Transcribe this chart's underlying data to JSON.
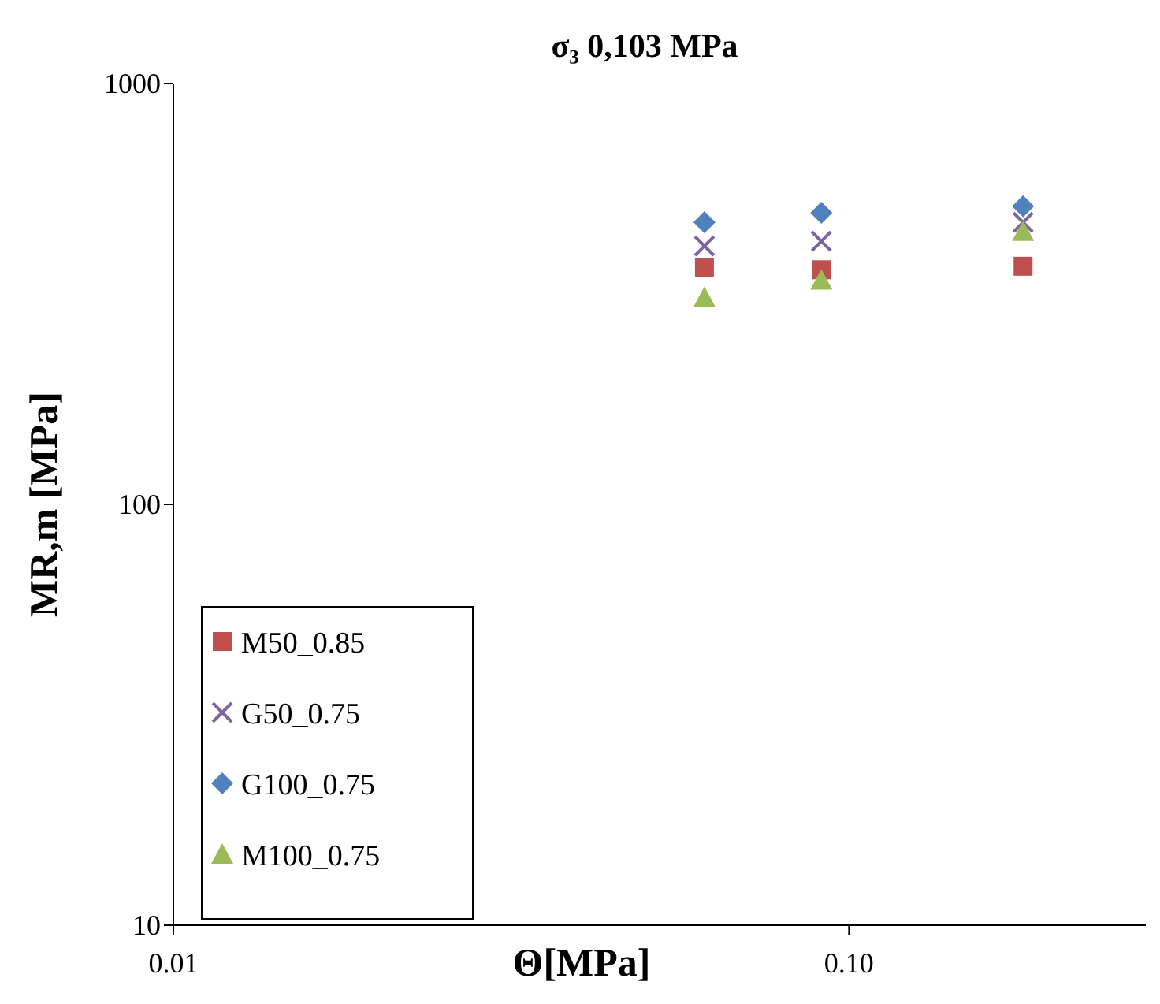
{
  "chart_data": {
    "type": "scatter",
    "title": "σ₃ 0,103 MPa",
    "xlabel": "Θ[MPa]",
    "ylabel": "MR,m [MPa]",
    "log": "xy",
    "xlim": [
      0.01,
      0.275
    ],
    "xticks": [
      {
        "value": 0.01,
        "label": "0.01"
      },
      {
        "value": 0.1,
        "label": "0.10"
      }
    ],
    "ylim": [
      10,
      1000
    ],
    "yticks": [
      10,
      100,
      1000
    ],
    "grid": false,
    "legend": "bottom left",
    "x": [
      0.0611,
      0.091,
      0.181
    ],
    "series": [
      {
        "name": "M50_0.85",
        "color": "#c0504d",
        "marker": "square",
        "values": [
          365,
          361,
          368
        ]
      },
      {
        "name": "G50_0.75",
        "color": "#8064a2",
        "marker": "cross",
        "values": [
          411,
          422,
          468
        ]
      },
      {
        "name": "G100_0.75",
        "color": "#4f81bd",
        "marker": "diamond",
        "values": [
          468,
          493,
          511
        ]
      },
      {
        "name": "M100_0.75",
        "color": "#9bbb59",
        "marker": "triangle",
        "values": [
          310,
          341,
          445
        ]
      }
    ]
  }
}
